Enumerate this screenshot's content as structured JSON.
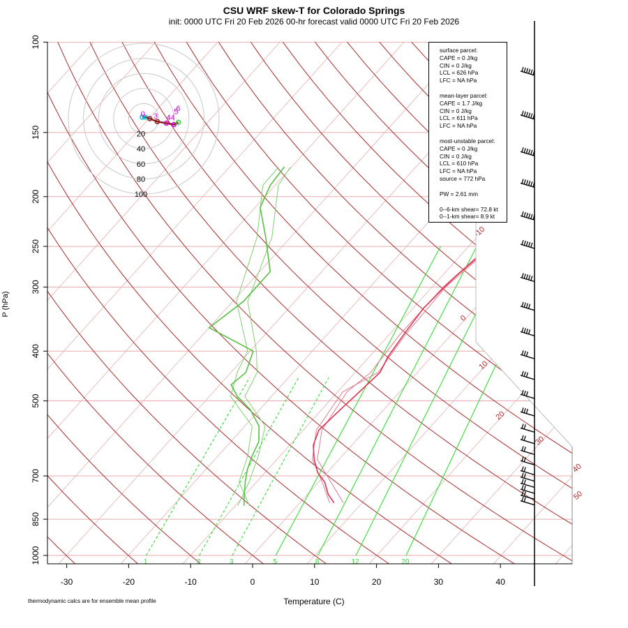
{
  "title": "CSU WRF skew-T for Colorado Springs",
  "subtitle": "init: 0000 UTC Fri 20 Feb 2026     00-hr forecast valid 0000 UTC Fri 20 Feb 2026",
  "footnote": "thermodynamic calcs are for ensemble mean profile",
  "info": {
    "surface": [
      "surface parcel:",
      "CAPE = 0 J/kg",
      "CIN = 0 J/kg",
      "LCL = 626 hPa",
      "LFC = NA hPa"
    ],
    "mean_layer": [
      "mean-layer parcel:",
      "CAPE = 1.7 J/kg",
      "CIN = 0 J/kg",
      "LCL = 611 hPa",
      "LFC = NA hPa"
    ],
    "most_unstable": [
      "most-unstable parcel:",
      "CAPE = 0 J/kg",
      "CIN = 0 J/kg",
      "LCL = 610 hPa",
      "LFC = NA hPa",
      "source = 772 hPa"
    ],
    "pw": "PW =  2.61 mm",
    "shear": [
      "0--6-km shear= 72.8 kt",
      "0--1-km shear= 8.9 kt"
    ]
  },
  "colors": {
    "isotherm": "#b22222",
    "dry_adiabat": "#a52a2a",
    "mixing_ratio": "#33dd33",
    "isobar": "#e8aaaa",
    "temperature": "#dc3250",
    "dewpoint": "#55c040",
    "barb": "#000000"
  },
  "chart_data": {
    "type": "skew-T log-P",
    "title": "CSU WRF skew-T for Colorado Springs",
    "xlabel": "Temperature (C)",
    "ylabel": "P (hPa)",
    "xlim": [
      -33,
      46
    ],
    "ylim": [
      1050,
      100
    ],
    "x_ticks": [
      -30,
      -20,
      -10,
      0,
      10,
      20,
      30,
      40
    ],
    "p_ticks": [
      100,
      150,
      200,
      250,
      300,
      400,
      500,
      700,
      850,
      1000
    ],
    "isotherm_labels": [
      -10,
      0,
      10,
      20,
      30,
      40,
      50
    ],
    "mixing_ratio_labels": [
      "1",
      "2",
      "3",
      "5",
      "8",
      "12",
      "20"
    ],
    "mixing_ratio_values": [
      1,
      2,
      3,
      5,
      8,
      12,
      20
    ],
    "temperature_profile": [
      {
        "p": 790,
        "t": 5.5
      },
      {
        "p": 760,
        "t": 3.3
      },
      {
        "p": 720,
        "t": 1.0
      },
      {
        "p": 690,
        "t": -1.5
      },
      {
        "p": 650,
        "t": -4.0
      },
      {
        "p": 610,
        "t": -6.2
      },
      {
        "p": 570,
        "t": -7.5
      },
      {
        "p": 520,
        "t": -7.0
      },
      {
        "p": 480,
        "t": -6.5
      },
      {
        "p": 440,
        "t": -6.0
      },
      {
        "p": 410,
        "t": -7.0
      },
      {
        "p": 370,
        "t": -7.7
      },
      {
        "p": 330,
        "t": -8.3
      },
      {
        "p": 300,
        "t": -8.0
      },
      {
        "p": 285,
        "t": -7.7
      },
      {
        "p": 250,
        "t": -6.5
      },
      {
        "p": 220,
        "t": -4.9
      },
      {
        "p": 190,
        "t": -3.1
      },
      {
        "p": 160,
        "t": -2.5
      },
      {
        "p": 130,
        "t": -2.9
      },
      {
        "p": 115,
        "t": -4.1
      }
    ],
    "temperature_members": [
      [
        {
          "p": 790,
          "t": 7.0
        },
        {
          "p": 720,
          "t": 2.0
        },
        {
          "p": 650,
          "t": -3.5
        },
        {
          "p": 570,
          "t": -7.0
        },
        {
          "p": 480,
          "t": -8.5
        },
        {
          "p": 440,
          "t": -7.5
        },
        {
          "p": 370,
          "t": -8.3
        },
        {
          "p": 300,
          "t": -8.2
        },
        {
          "p": 250,
          "t": -6.8
        },
        {
          "p": 190,
          "t": -3.4
        },
        {
          "p": 130,
          "t": -2.4
        },
        {
          "p": 115,
          "t": -2.5
        }
      ],
      [
        {
          "p": 790,
          "t": 4.8
        },
        {
          "p": 720,
          "t": 0.6
        },
        {
          "p": 650,
          "t": -4.3
        },
        {
          "p": 570,
          "t": -7.9
        },
        {
          "p": 480,
          "t": -9.2
        },
        {
          "p": 440,
          "t": -6.3
        },
        {
          "p": 370,
          "t": -7.4
        },
        {
          "p": 300,
          "t": -7.8
        },
        {
          "p": 250,
          "t": -6.2
        },
        {
          "p": 190,
          "t": -2.8
        },
        {
          "p": 130,
          "t": -2.6
        },
        {
          "p": 115,
          "t": -3.4
        }
      ]
    ],
    "dewpoint_profile": [
      {
        "p": 800,
        "td": -8.6
      },
      {
        "p": 760,
        "td": -10.2
      },
      {
        "p": 720,
        "td": -11.8
      },
      {
        "p": 680,
        "td": -13.3
      },
      {
        "p": 640,
        "td": -14.5
      },
      {
        "p": 600,
        "td": -15.5
      },
      {
        "p": 560,
        "td": -17.7
      },
      {
        "p": 520,
        "td": -21.5
      },
      {
        "p": 490,
        "td": -25.5
      },
      {
        "p": 465,
        "td": -28.2
      },
      {
        "p": 440,
        "td": -27.6
      },
      {
        "p": 400,
        "td": -29.5
      },
      {
        "p": 360,
        "td": -40.0
      },
      {
        "p": 320,
        "td": -38.3
      },
      {
        "p": 280,
        "td": -38.3
      },
      {
        "p": 240,
        "td": -44.0
      },
      {
        "p": 210,
        "td": -49.2
      },
      {
        "p": 190,
        "td": -50.8
      },
      {
        "p": 175,
        "td": -51.2
      }
    ],
    "dewpoint_members": [
      [
        {
          "p": 800,
          "td": -9.6
        },
        {
          "p": 720,
          "td": -11.2
        },
        {
          "p": 640,
          "td": -13.5
        },
        {
          "p": 560,
          "td": -16.7
        },
        {
          "p": 490,
          "td": -24.3
        },
        {
          "p": 440,
          "td": -25.8
        },
        {
          "p": 400,
          "td": -29.0
        },
        {
          "p": 320,
          "td": -37.6
        },
        {
          "p": 240,
          "td": -43.0
        },
        {
          "p": 190,
          "td": -49.5
        },
        {
          "p": 175,
          "td": -50.2
        }
      ],
      [
        {
          "p": 800,
          "td": -7.7
        },
        {
          "p": 720,
          "td": -12.8
        },
        {
          "p": 640,
          "td": -15.2
        },
        {
          "p": 560,
          "td": -18.8
        },
        {
          "p": 490,
          "td": -26.6
        },
        {
          "p": 440,
          "td": -29.0
        },
        {
          "p": 400,
          "td": -30.4
        },
        {
          "p": 320,
          "td": -39.4
        },
        {
          "p": 240,
          "td": -45.4
        },
        {
          "p": 190,
          "td": -52.0
        },
        {
          "p": 175,
          "td": -52.1
        }
      ]
    ],
    "wind_barbs_kt": [
      {
        "p": 115,
        "speed": 60
      },
      {
        "p": 140,
        "speed": 55
      },
      {
        "p": 165,
        "speed": 55
      },
      {
        "p": 190,
        "speed": 55
      },
      {
        "p": 220,
        "speed": 55
      },
      {
        "p": 250,
        "speed": 50
      },
      {
        "p": 290,
        "speed": 45
      },
      {
        "p": 330,
        "speed": 40
      },
      {
        "p": 370,
        "speed": 35
      },
      {
        "p": 410,
        "speed": 30
      },
      {
        "p": 450,
        "speed": 30
      },
      {
        "p": 490,
        "speed": 25
      },
      {
        "p": 530,
        "speed": 25
      },
      {
        "p": 570,
        "speed": 20
      },
      {
        "p": 600,
        "speed": 20
      },
      {
        "p": 630,
        "speed": 15
      },
      {
        "p": 660,
        "speed": 15
      },
      {
        "p": 690,
        "speed": 15
      },
      {
        "p": 710,
        "speed": 15
      },
      {
        "p": 730,
        "speed": 15
      },
      {
        "p": 750,
        "speed": 15
      },
      {
        "p": 770,
        "speed": 15
      },
      {
        "p": 790,
        "speed": 15
      }
    ],
    "hodograph": {
      "ring_labels": [
        "20",
        "40",
        "60",
        "80",
        "100"
      ],
      "trace_kt": [
        {
          "u": -2,
          "v": 2
        },
        {
          "u": 2,
          "v": 2
        },
        {
          "u": 8,
          "v": 0
        },
        {
          "u": 18,
          "v": -4
        },
        {
          "u": 30,
          "v": -6
        },
        {
          "u": 40,
          "v": -8
        },
        {
          "u": 46,
          "v": -5
        }
      ],
      "labels": [
        {
          "t": "0",
          "u": -4,
          "v": 3
        },
        {
          "t": "3",
          "u": 13,
          "v": 0
        },
        {
          "t": "44",
          "u": 30,
          "v": -2
        },
        {
          "t": "5",
          "u": 40,
          "v": 6
        },
        {
          "t": "6",
          "u": 43,
          "v": 10
        }
      ]
    }
  }
}
